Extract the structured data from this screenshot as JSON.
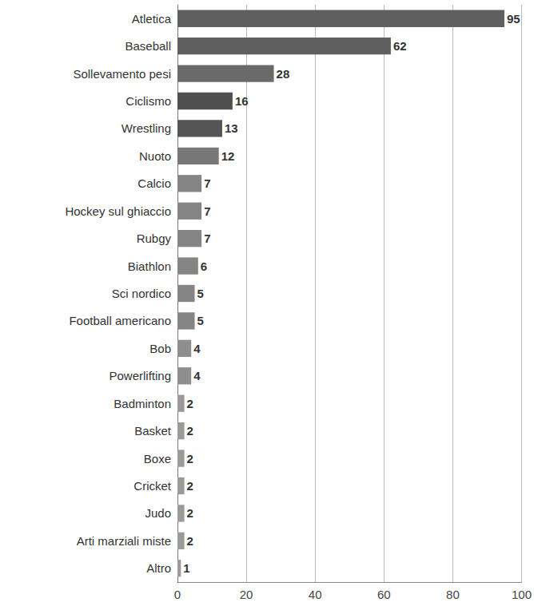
{
  "chart_data": {
    "type": "bar",
    "orientation": "horizontal",
    "categories": [
      "Atletica",
      "Baseball",
      "Sollevamento pesi",
      "Ciclismo",
      "Wrestling",
      "Nuoto",
      "Calcio",
      "Hockey sul ghiaccio",
      "Rubgy",
      "Biathlon",
      "Sci nordico",
      "Football americano",
      "Bob",
      "Powerlifting",
      "Badminton",
      "Basket",
      "Boxe",
      "Cricket",
      "Judo",
      "Arti marziali miste",
      "Altro"
    ],
    "values": [
      95,
      62,
      28,
      16,
      13,
      12,
      7,
      7,
      7,
      6,
      5,
      5,
      4,
      4,
      2,
      2,
      2,
      2,
      2,
      2,
      1
    ],
    "colors": [
      "#5f5f5f",
      "#5f5f5f",
      "#6a6a6a",
      "#4f4f4f",
      "#555555",
      "#777777",
      "#858585",
      "#858585",
      "#858585",
      "#858585",
      "#858585",
      "#858585",
      "#8e8e8e",
      "#8e8e8e",
      "#9a9a9a",
      "#9a9a9a",
      "#9a9a9a",
      "#9a9a9a",
      "#9a9a9a",
      "#9a9a9a",
      "#9a9a9a"
    ],
    "xlim": [
      0,
      100
    ],
    "xticks": [
      0,
      20,
      40,
      60,
      80,
      100
    ],
    "grid": true,
    "data_labels": true
  }
}
